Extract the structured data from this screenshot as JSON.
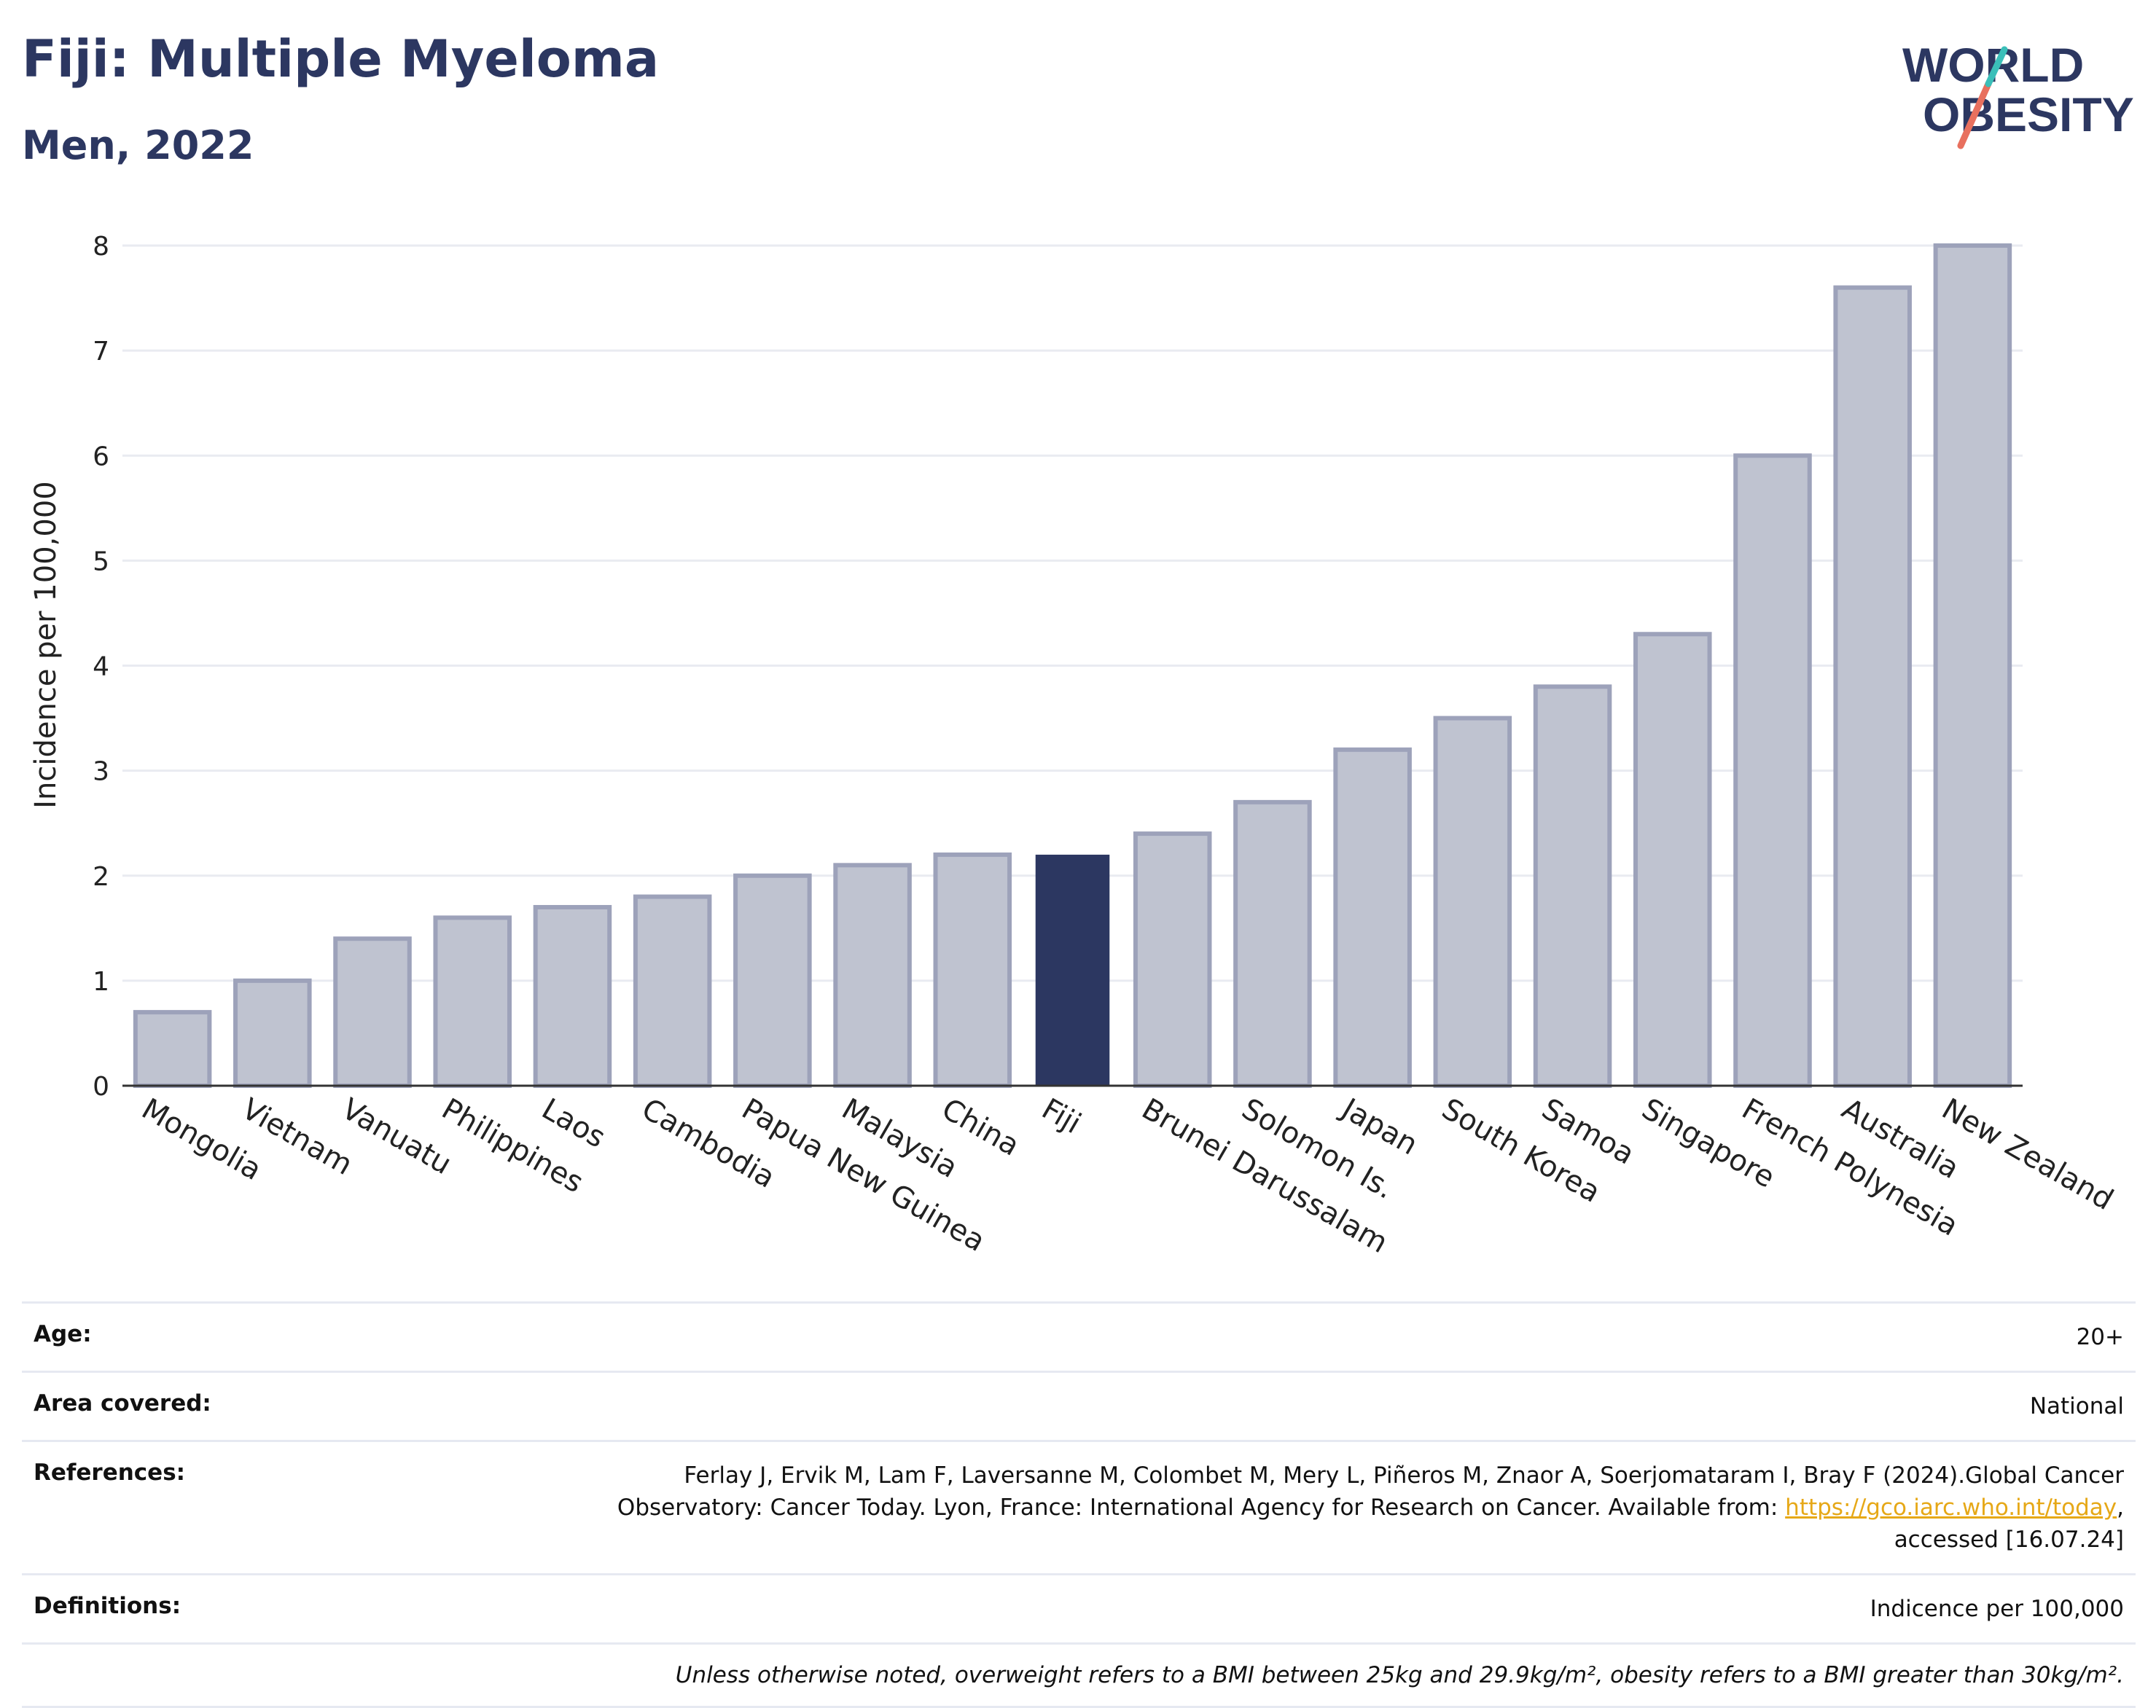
{
  "header": {
    "title": "Fiji: Multiple Myeloma",
    "subtitle": "Men, 2022"
  },
  "logo": {
    "line1": "WORLD",
    "line2": "OBESITY"
  },
  "chart_data": {
    "type": "bar",
    "ylabel": "Incidence per 100,000",
    "ylim": [
      0,
      8
    ],
    "yticks": [
      0,
      1,
      2,
      3,
      4,
      5,
      6,
      7,
      8
    ],
    "categories": [
      "Mongolia",
      "Vietnam",
      "Vanuatu",
      "Philippines",
      "Laos",
      "Cambodia",
      "Papua New Guinea",
      "Malaysia",
      "China",
      "Fiji",
      "Brunei Darussalam",
      "Solomon Is.",
      "Japan",
      "South Korea",
      "Samoa",
      "Singapore",
      "French Polynesia",
      "Australia",
      "New Zealand"
    ],
    "values": [
      0.7,
      1.0,
      1.4,
      1.6,
      1.7,
      1.8,
      2.0,
      2.1,
      2.2,
      2.2,
      2.4,
      2.7,
      3.2,
      3.5,
      3.8,
      4.3,
      6.0,
      7.6,
      8.0
    ],
    "highlight": "Fiji",
    "colors": {
      "bar": "#bfc3d0",
      "bar_border": "#9da2ba",
      "highlight": "#2c3761",
      "grid": "#e9ebf1"
    }
  },
  "info": {
    "age_label": "Age:",
    "age_value": "20+",
    "area_label": "Area covered:",
    "area_value": "National",
    "ref_label": "References:",
    "ref_text_1": "Ferlay J, Ervik M, Lam F, Laversanne M, Colombet M, Mery L, Piñeros M, Znaor A, Soerjomataram I, Bray F (2024).Global Cancer",
    "ref_text_2": "Observatory: Cancer Today. Lyon, France: International Agency for Research on Cancer. Available from: ",
    "ref_link": "https://gco.iarc.who.int/today",
    "ref_text_3": ",",
    "ref_text_4": "accessed [16.07.24]",
    "def_label": "Definitions:",
    "def_value": "Indicence per 100,000",
    "note": "Unless otherwise noted, overweight refers to a BMI between 25kg and 29.9kg/m², obesity refers to a BMI greater than 30kg/m²."
  }
}
